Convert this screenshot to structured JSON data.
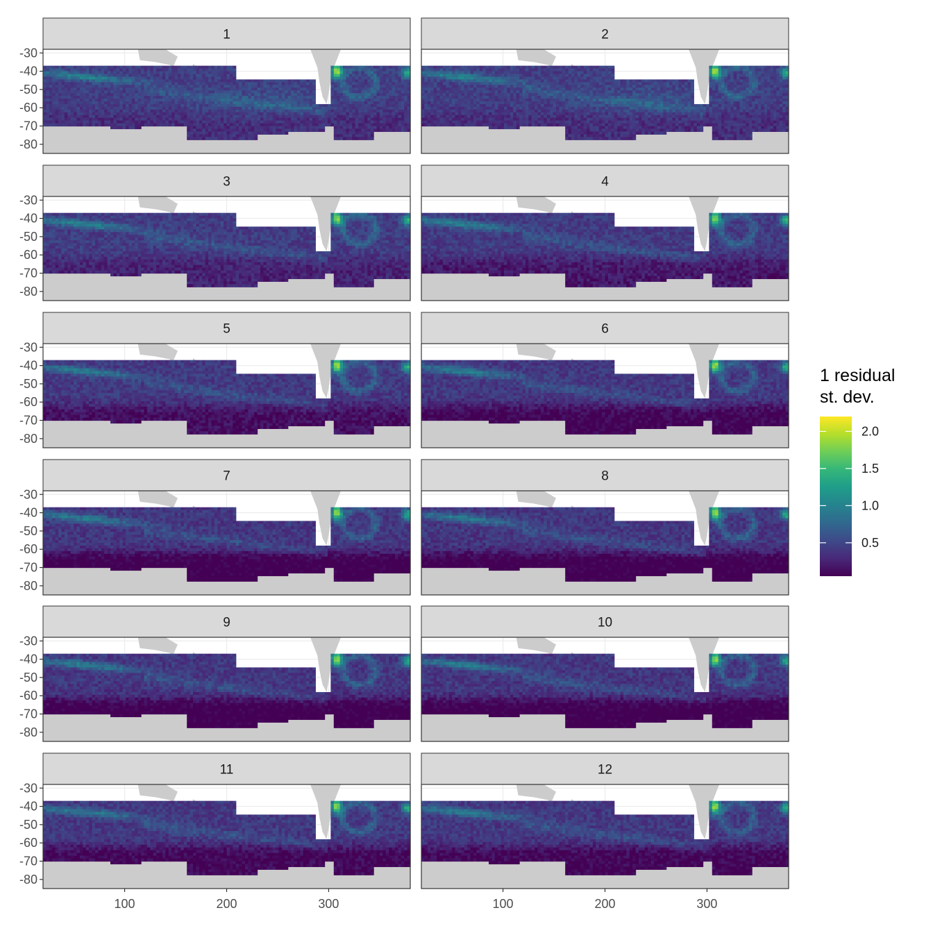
{
  "chart_data": {
    "type": "heatmap",
    "layout": "facet-grid",
    "facet_rows": 6,
    "facet_cols": 2,
    "panels": [
      "1",
      "2",
      "3",
      "4",
      "5",
      "6",
      "7",
      "8",
      "9",
      "10",
      "11",
      "12"
    ],
    "x_ticks": [
      100,
      200,
      300
    ],
    "x_tick_labels": [
      "100",
      "200",
      "300"
    ],
    "y_ticks": [
      -30,
      -40,
      -50,
      -60,
      -70,
      -80
    ],
    "y_tick_labels": [
      "-30",
      "-40",
      "-50",
      "-60",
      "-70",
      "-80"
    ],
    "xlim": [
      20,
      380
    ],
    "ylim": [
      -85,
      -28
    ],
    "xlabel": "",
    "ylabel": "",
    "legend": {
      "title_line1": "1 residual",
      "title_line2": "st. dev.",
      "placement": "right",
      "ticks": [
        2.0,
        1.5,
        1.0,
        0.5
      ],
      "tick_labels": [
        "2.0",
        "1.5",
        "1.0",
        "0.5"
      ],
      "range": [
        0.05,
        2.2
      ],
      "colors": [
        "#440154",
        "#482878",
        "#3e4989",
        "#31688e",
        "#26828e",
        "#1f9e89",
        "#35b779",
        "#6ece58",
        "#b5de2b",
        "#fde725"
      ]
    },
    "land_color": "#cccccc",
    "strip_fill": "#d9d9d9",
    "panel_border": "#333333",
    "grid_color": "#ebebeb",
    "grid": true,
    "field_description": "Gridded residual standard deviation over the Southern Ocean (approx. lon 20-380, lat -37 to -78); high values (~1.5-2.2) near 300-310 and 380 east at -40, low values (~0.1) south of -65 in later months"
  }
}
